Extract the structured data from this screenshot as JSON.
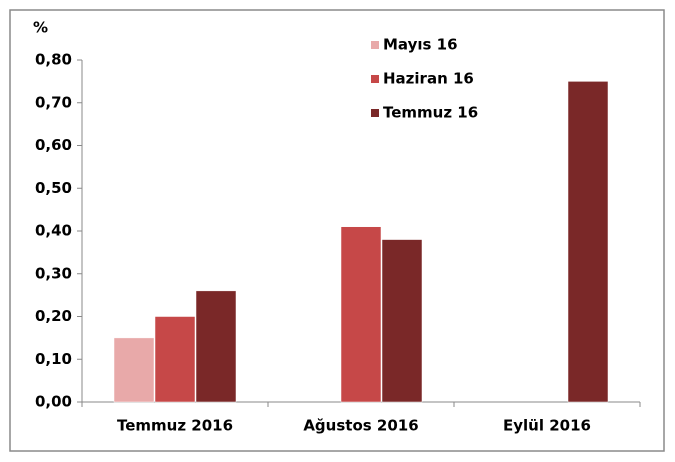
{
  "chart_data": {
    "type": "bar",
    "y_label": "%",
    "categories": [
      "Temmuz 2016",
      "Ağustos 2016",
      "Eylül 2016"
    ],
    "series": [
      {
        "name": "Mayıs 16",
        "color": "#e8a9a9",
        "values": [
          0.15,
          null,
          null
        ]
      },
      {
        "name": "Haziran 16",
        "color": "#c64848",
        "values": [
          0.2,
          0.41,
          null
        ]
      },
      {
        "name": "Temmuz 16",
        "color": "#7a2828",
        "values": [
          0.26,
          0.38,
          0.75
        ]
      }
    ],
    "ylim": [
      0,
      0.8
    ],
    "yticks": [
      {
        "value": 0,
        "label": "0,00"
      },
      {
        "value": 0.1,
        "label": "0,10"
      },
      {
        "value": 0.2,
        "label": "0,20"
      },
      {
        "value": 0.3,
        "label": "0,30"
      },
      {
        "value": 0.4,
        "label": "0,40"
      },
      {
        "value": 0.5,
        "label": "0,50"
      },
      {
        "value": 0.6,
        "label": "0,60"
      },
      {
        "value": 0.7,
        "label": "0,70"
      },
      {
        "value": 0.8,
        "label": "0,80"
      }
    ],
    "legend": "top-center"
  }
}
